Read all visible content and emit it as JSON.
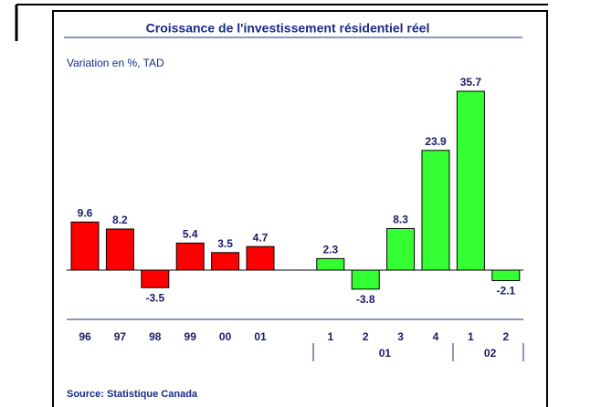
{
  "chart_data": {
    "type": "bar",
    "title": "Croissance de l'investissement résidentiel réel",
    "subtitle": "Variation en %, TAD",
    "source": "Source:  Statistique Canada",
    "annual": {
      "categories": [
        "96",
        "97",
        "98",
        "99",
        "00",
        "01"
      ],
      "values": [
        9.6,
        8.2,
        -3.5,
        5.4,
        3.5,
        4.7
      ],
      "color": "#ff0000"
    },
    "quarterly": [
      {
        "year": "01",
        "categories": [
          "1",
          "2",
          "3",
          "4"
        ],
        "values": [
          2.3,
          -3.8,
          8.3,
          23.9
        ],
        "color": "#33ff33"
      },
      {
        "year": "02",
        "categories": [
          "1",
          "2"
        ],
        "values": [
          35.7,
          -2.1
        ],
        "color": "#33ff33"
      }
    ]
  }
}
